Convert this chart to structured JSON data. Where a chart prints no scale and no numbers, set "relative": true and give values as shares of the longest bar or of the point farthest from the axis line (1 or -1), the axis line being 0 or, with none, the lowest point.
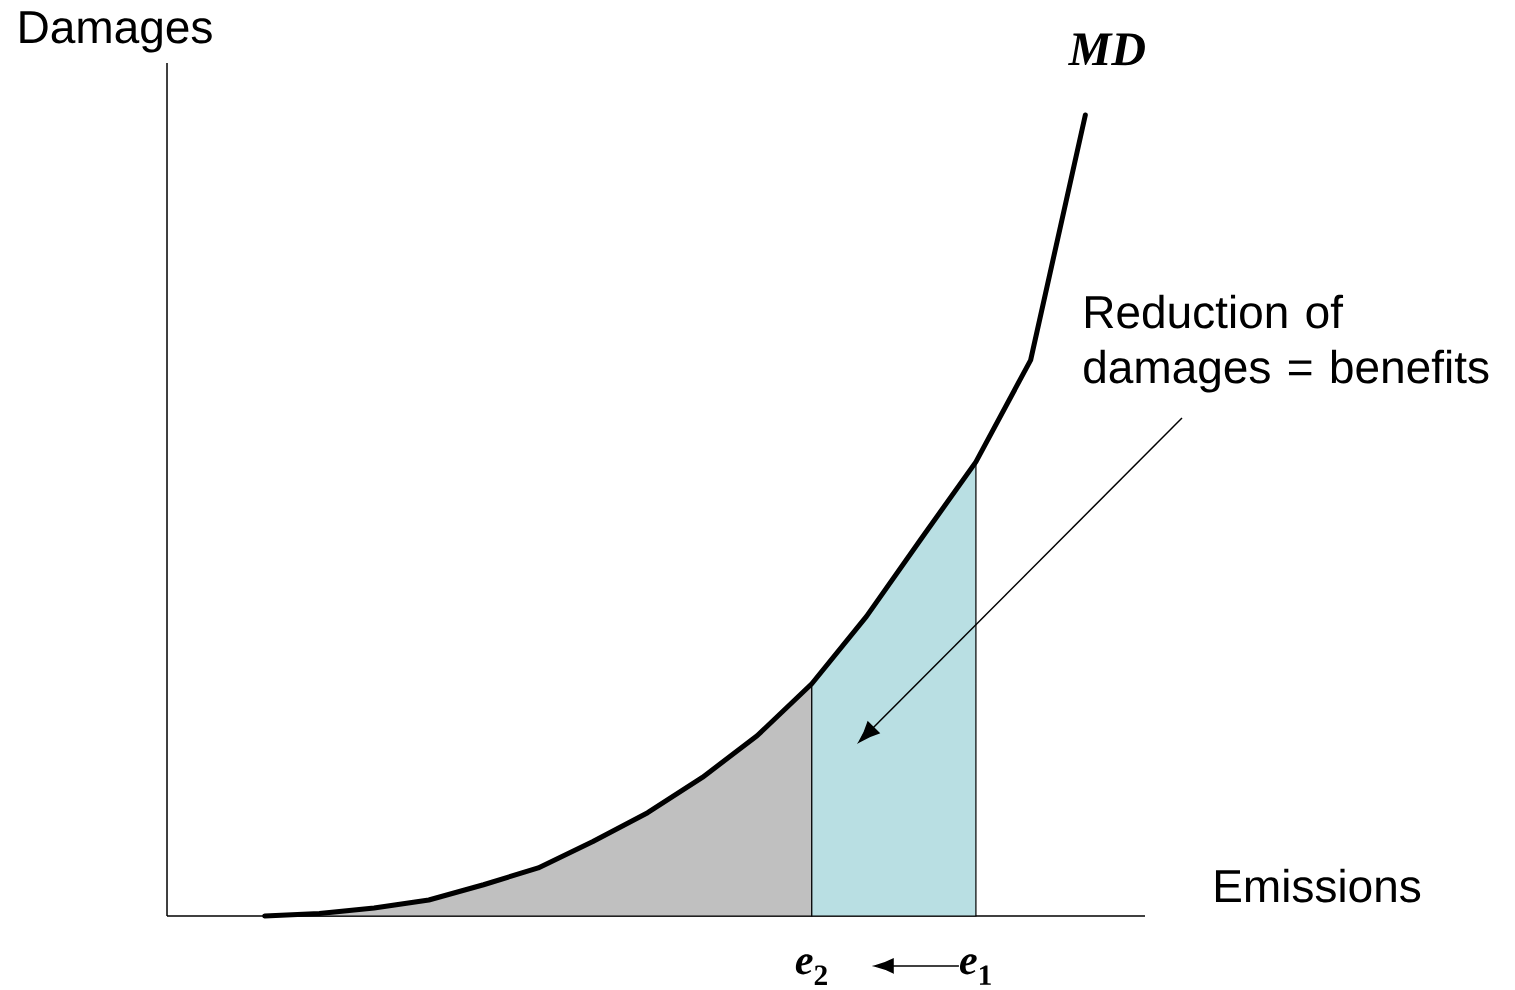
{
  "chart_data": {
    "type": "line",
    "relative": true,
    "xlabel": "Emissions",
    "ylabel": "Damages",
    "categories": [
      null,
      null,
      null,
      null,
      null,
      null,
      null,
      null,
      null,
      null,
      "*e*$_{2}$",
      null,
      null,
      "*e*$_{1}$",
      null,
      null
    ],
    "legend": false,
    "grid": false,
    "marker": "none",
    "line_style": "solid",
    "series": [
      {
        "type": "area",
        "color": "#c0c0c0",
        "values": [
          0,
          0.003,
          0.01,
          0.02,
          0.039,
          0.06,
          0.093,
          0.129,
          0.173,
          0.225,
          0.29,
          null,
          null,
          null,
          null,
          null
        ]
      },
      {
        "type": "area",
        "color": "#b9dfe3",
        "values": [
          null,
          null,
          null,
          null,
          null,
          null,
          null,
          null,
          null,
          null,
          0.29,
          0.374,
          0.471,
          0.567,
          null,
          null
        ]
      },
      {
        "name": "MD",
        "color": "#000000",
        "values": [
          0,
          0.003,
          0.01,
          0.02,
          0.039,
          0.06,
          0.093,
          0.129,
          0.173,
          0.225,
          0.29,
          0.374,
          0.471,
          0.567,
          0.694,
          1
        ]
      }
    ],
    "annotations": [
      "Reduction of damages = benefits"
    ]
  }
}
